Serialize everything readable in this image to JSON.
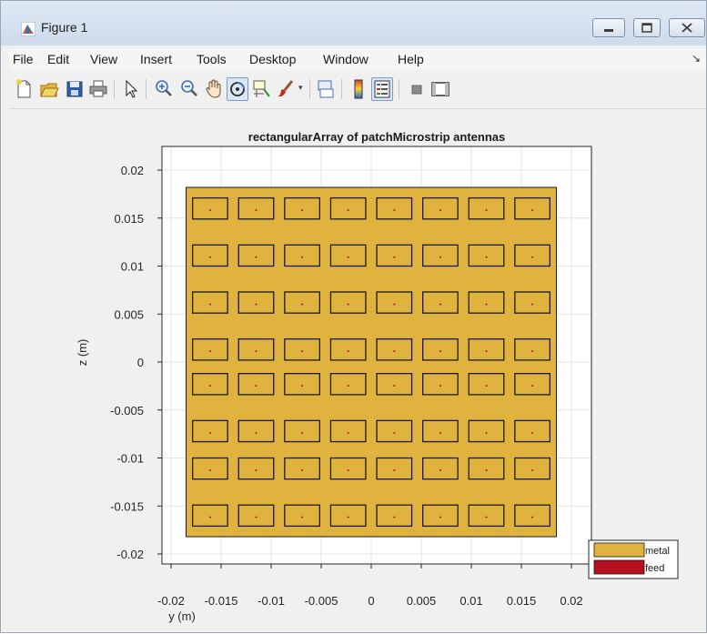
{
  "window": {
    "title": "Figure 1",
    "icon": "matlab-figure-icon"
  },
  "menu": {
    "items": [
      "File",
      "Edit",
      "View",
      "Insert",
      "Tools",
      "Desktop",
      "Window",
      "Help"
    ]
  },
  "toolbar": {
    "buttons": [
      "new-figure-icon",
      "open-file-icon",
      "save-icon",
      "print-icon",
      "pointer-icon",
      "zoom-in-icon",
      "zoom-out-icon",
      "pan-hand-icon",
      "rotate-3d-icon",
      "data-cursor-icon",
      "brush-icon",
      "link-plot-icon",
      "colorbar-icon",
      "legend-icon",
      "hide-plot-tools-icon",
      "show-plot-tools-icon"
    ],
    "active": [
      "rotate-3d-icon",
      "legend-icon"
    ]
  },
  "colors": {
    "metal": "#e0b33f",
    "feed": "#b5101d"
  },
  "chart_data": {
    "type": "heatmap",
    "title": "rectangularArray of patchMicrostrip antennas",
    "xlabel": "y (m)",
    "ylabel": "z (m)",
    "xlim": [
      -0.02,
      0.02
    ],
    "ylim": [
      -0.02,
      0.02
    ],
    "xticks": [
      "-0.02",
      "-0.015",
      "-0.01",
      "-0.005",
      "0",
      "0.005",
      "0.01",
      "0.015",
      "0.02"
    ],
    "yticks": [
      "0.02",
      "0.015",
      "0.01",
      "0.005",
      "0",
      "-0.005",
      "-0.01",
      "-0.015",
      "-0.02"
    ],
    "grid": true,
    "ground_plane": {
      "ymin": -0.0185,
      "ymax": 0.0185,
      "zmin": -0.0182,
      "zmax": 0.0182
    },
    "array": {
      "rows": 8,
      "columns": 8,
      "patch_centers_y": [
        -0.0161,
        -0.0115,
        -0.0069,
        -0.0023,
        0.0023,
        0.0069,
        0.0115,
        0.0161
      ],
      "patch_centers_z": [
        0.016,
        0.0111,
        0.0062,
        0.0013,
        -0.0023,
        -0.0072,
        -0.0111,
        -0.016
      ],
      "patch_width": 0.0035,
      "patch_height": 0.0022
    },
    "legend": {
      "placement": "bottom-right",
      "entries": [
        "metal",
        "feed"
      ]
    }
  }
}
